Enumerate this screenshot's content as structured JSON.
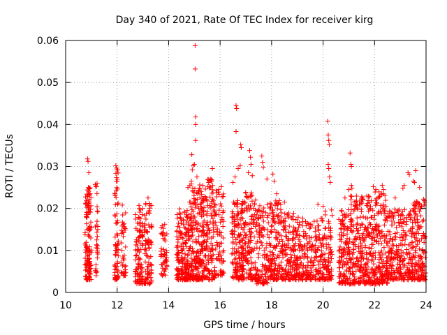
{
  "chart_data": {
    "type": "scatter",
    "title": "Day 340 of 2021, Rate Of TEC Index for receiver kirg",
    "xlabel": "GPS time / hours",
    "ylabel": "ROTI / TECUs",
    "xlim": [
      10,
      24
    ],
    "ylim": [
      0,
      0.06
    ],
    "grid": true,
    "marker": "+",
    "color": "#ff0000",
    "x_ticks": [
      10,
      12,
      14,
      16,
      18,
      20,
      22,
      24
    ],
    "x_tick_labels": [
      "10",
      "12",
      "14",
      "16",
      "18",
      "20",
      "22",
      "24"
    ],
    "y_ticks": [
      0,
      0.01,
      0.02,
      0.03,
      0.04,
      0.05,
      0.06
    ],
    "y_tick_labels": [
      "0",
      "0.01",
      "0.02",
      "0.03",
      "0.04",
      "0.05",
      "0.06"
    ],
    "series": [
      {
        "name": "ROTI",
        "clusters": [
          {
            "t": [
              10.75,
              11.0
            ],
            "roti": [
              0.003,
              0.025
            ],
            "n": 140
          },
          {
            "t": [
              11.15,
              11.25
            ],
            "roti": [
              0.004,
              0.026
            ],
            "n": 30
          },
          {
            "t": [
              11.9,
              12.05
            ],
            "roti": [
              0.003,
              0.03
            ],
            "n": 70
          },
          {
            "t": [
              12.15,
              12.35
            ],
            "roti": [
              0.004,
              0.019
            ],
            "n": 40
          },
          {
            "t": [
              12.7,
              13.0
            ],
            "roti": [
              0.002,
              0.021
            ],
            "n": 110
          },
          {
            "t": [
              13.05,
              13.35
            ],
            "roti": [
              0.002,
              0.022
            ],
            "n": 90
          },
          {
            "t": [
              13.7,
              13.95
            ],
            "roti": [
              0.004,
              0.017
            ],
            "n": 50
          },
          {
            "t": [
              14.3,
              14.8
            ],
            "roti": [
              0.003,
              0.02
            ],
            "n": 190
          },
          {
            "t": [
              14.8,
              15.3
            ],
            "roti": [
              0.003,
              0.026
            ],
            "n": 200
          },
          {
            "t": [
              15.3,
              15.8
            ],
            "roti": [
              0.003,
              0.027
            ],
            "n": 170
          },
          {
            "t": [
              15.8,
              16.15
            ],
            "roti": [
              0.004,
              0.025
            ],
            "n": 70
          },
          {
            "t": [
              16.45,
              16.9
            ],
            "roti": [
              0.003,
              0.022
            ],
            "n": 160
          },
          {
            "t": [
              16.9,
              17.4
            ],
            "roti": [
              0.003,
              0.024
            ],
            "n": 140
          },
          {
            "t": [
              17.4,
              17.9
            ],
            "roti": [
              0.002,
              0.021
            ],
            "n": 120
          },
          {
            "t": [
              17.9,
              18.4
            ],
            "roti": [
              0.003,
              0.022
            ],
            "n": 150
          },
          {
            "t": [
              18.4,
              18.9
            ],
            "roti": [
              0.003,
              0.019
            ],
            "n": 120
          },
          {
            "t": [
              18.9,
              19.4
            ],
            "roti": [
              0.003,
              0.018
            ],
            "n": 120
          },
          {
            "t": [
              19.4,
              19.9
            ],
            "roti": [
              0.003,
              0.017
            ],
            "n": 100
          },
          {
            "t": [
              19.9,
              20.35
            ],
            "roti": [
              0.003,
              0.02
            ],
            "n": 110
          },
          {
            "t": [
              20.6,
              21.05
            ],
            "roti": [
              0.002,
              0.02
            ],
            "n": 130
          },
          {
            "t": [
              21.05,
              21.5
            ],
            "roti": [
              0.002,
              0.023
            ],
            "n": 140
          },
          {
            "t": [
              21.5,
              22.0
            ],
            "roti": [
              0.002,
              0.023
            ],
            "n": 150
          },
          {
            "t": [
              22.0,
              22.5
            ],
            "roti": [
              0.002,
              0.024
            ],
            "n": 160
          },
          {
            "t": [
              22.5,
              23.0
            ],
            "roti": [
              0.003,
              0.02
            ],
            "n": 130
          },
          {
            "t": [
              23.0,
              23.5
            ],
            "roti": [
              0.003,
              0.02
            ],
            "n": 130
          },
          {
            "t": [
              23.5,
              24.0
            ],
            "roti": [
              0.003,
              0.022
            ],
            "n": 140
          }
        ],
        "points": [
          {
            "t": 10.85,
            "roti": 0.0318
          },
          {
            "t": 10.87,
            "roti": 0.0312
          },
          {
            "t": 10.9,
            "roti": 0.0285
          },
          {
            "t": 10.88,
            "roti": 0.025
          },
          {
            "t": 10.95,
            "roti": 0.0235
          },
          {
            "t": 11.22,
            "roti": 0.026
          },
          {
            "t": 11.2,
            "roti": 0.0252
          },
          {
            "t": 11.95,
            "roti": 0.0302
          },
          {
            "t": 11.98,
            "roti": 0.0296
          },
          {
            "t": 12.02,
            "roti": 0.0292
          },
          {
            "t": 12.0,
            "roti": 0.0265
          },
          {
            "t": 12.2,
            "roti": 0.0208
          },
          {
            "t": 13.2,
            "roti": 0.0225
          },
          {
            "t": 13.25,
            "roti": 0.0212
          },
          {
            "t": 14.75,
            "roti": 0.025
          },
          {
            "t": 14.9,
            "roti": 0.0328
          },
          {
            "t": 14.95,
            "roti": 0.0302
          },
          {
            "t": 14.92,
            "roti": 0.0292
          },
          {
            "t": 14.88,
            "roti": 0.0265
          },
          {
            "t": 15.03,
            "roti": 0.0588
          },
          {
            "t": 15.03,
            "roti": 0.0532
          },
          {
            "t": 15.05,
            "roti": 0.0418
          },
          {
            "t": 15.05,
            "roti": 0.04
          },
          {
            "t": 15.05,
            "roti": 0.0362
          },
          {
            "t": 15.1,
            "roti": 0.0275
          },
          {
            "t": 15.0,
            "roti": 0.0305
          },
          {
            "t": 15.2,
            "roti": 0.0248
          },
          {
            "t": 15.6,
            "roti": 0.0252
          },
          {
            "t": 15.65,
            "roti": 0.0268
          },
          {
            "t": 15.7,
            "roti": 0.0295
          },
          {
            "t": 15.95,
            "roti": 0.0245
          },
          {
            "t": 16.05,
            "roti": 0.0252
          },
          {
            "t": 16.5,
            "roti": 0.0262
          },
          {
            "t": 16.58,
            "roti": 0.0275
          },
          {
            "t": 16.62,
            "roti": 0.0445
          },
          {
            "t": 16.64,
            "roti": 0.0438
          },
          {
            "t": 16.62,
            "roti": 0.0383
          },
          {
            "t": 16.8,
            "roti": 0.0352
          },
          {
            "t": 16.82,
            "roti": 0.0345
          },
          {
            "t": 16.78,
            "roti": 0.0302
          },
          {
            "t": 16.7,
            "roti": 0.0295
          },
          {
            "t": 17.15,
            "roti": 0.0338
          },
          {
            "t": 17.18,
            "roti": 0.0322
          },
          {
            "t": 17.2,
            "roti": 0.0305
          },
          {
            "t": 17.1,
            "roti": 0.0285
          },
          {
            "t": 17.25,
            "roti": 0.0278
          },
          {
            "t": 17.62,
            "roti": 0.0325
          },
          {
            "t": 17.65,
            "roti": 0.031
          },
          {
            "t": 17.68,
            "roti": 0.0298
          },
          {
            "t": 17.82,
            "roti": 0.027
          },
          {
            "t": 18.05,
            "roti": 0.0282
          },
          {
            "t": 18.1,
            "roti": 0.0265
          },
          {
            "t": 18.2,
            "roti": 0.0235
          },
          {
            "t": 18.5,
            "roti": 0.0215
          },
          {
            "t": 19.8,
            "roti": 0.021
          },
          {
            "t": 20.0,
            "roti": 0.0205
          },
          {
            "t": 20.18,
            "roti": 0.0408
          },
          {
            "t": 20.2,
            "roti": 0.0375
          },
          {
            "t": 20.22,
            "roti": 0.0362
          },
          {
            "t": 20.24,
            "roti": 0.0352
          },
          {
            "t": 20.2,
            "roti": 0.0305
          },
          {
            "t": 20.22,
            "roti": 0.0295
          },
          {
            "t": 20.25,
            "roti": 0.0275
          },
          {
            "t": 20.28,
            "roti": 0.0262
          },
          {
            "t": 20.85,
            "roti": 0.0225
          },
          {
            "t": 21.0,
            "roti": 0.0245
          },
          {
            "t": 21.05,
            "roti": 0.0332
          },
          {
            "t": 21.08,
            "roti": 0.0305
          },
          {
            "t": 21.1,
            "roti": 0.03
          },
          {
            "t": 21.1,
            "roti": 0.0255
          },
          {
            "t": 21.12,
            "roti": 0.0248
          },
          {
            "t": 21.5,
            "roti": 0.0228
          },
          {
            "t": 21.55,
            "roti": 0.0222
          },
          {
            "t": 21.95,
            "roti": 0.0252
          },
          {
            "t": 22.05,
            "roti": 0.0245
          },
          {
            "t": 22.3,
            "roti": 0.0255
          },
          {
            "t": 22.35,
            "roti": 0.0245
          },
          {
            "t": 22.8,
            "roti": 0.0225
          },
          {
            "t": 23.1,
            "roti": 0.0248
          },
          {
            "t": 23.15,
            "roti": 0.0255
          },
          {
            "t": 23.3,
            "roti": 0.0285
          },
          {
            "t": 23.35,
            "roti": 0.028
          },
          {
            "t": 23.5,
            "roti": 0.0265
          },
          {
            "t": 23.55,
            "roti": 0.0262
          },
          {
            "t": 23.6,
            "roti": 0.029
          },
          {
            "t": 23.75,
            "roti": 0.025
          },
          {
            "t": 23.9,
            "roti": 0.0222
          },
          {
            "t": 23.95,
            "roti": 0.0215
          }
        ]
      }
    ]
  }
}
